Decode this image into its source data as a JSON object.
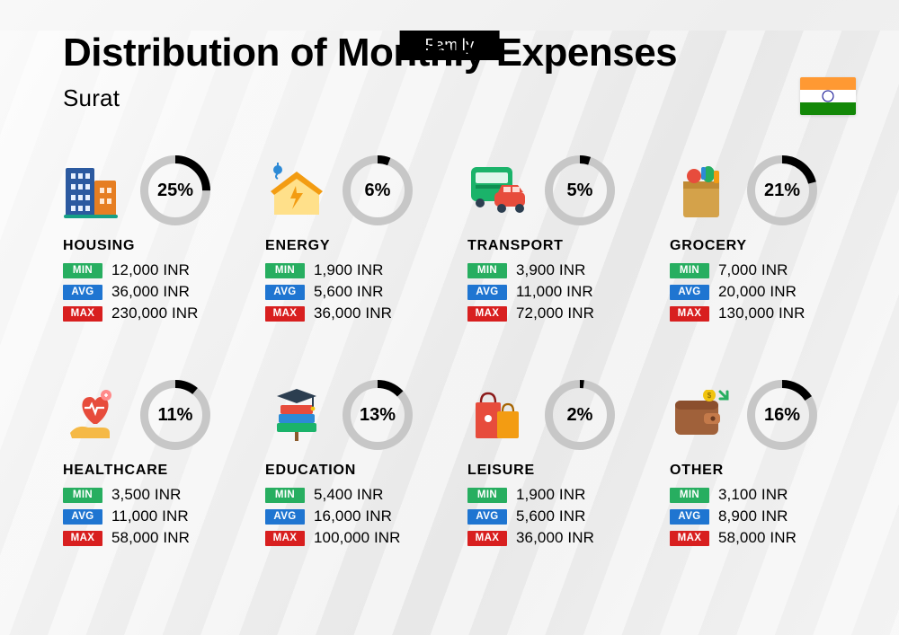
{
  "top_tag": "Family",
  "title": "Distribution of Monthly Expenses",
  "subtitle": "Surat",
  "flag": {
    "stripes": [
      "#ff9933",
      "#ffffff",
      "#138808"
    ],
    "chakra_color": "#00008b"
  },
  "currency_suffix": " INR",
  "donut": {
    "track_color": "#c7c7c7",
    "progress_color": "#000000",
    "stroke_width": 9,
    "size": 78,
    "label_fontsize": 20
  },
  "badges": {
    "min": {
      "label": "MIN",
      "bg": "#27ae60"
    },
    "avg": {
      "label": "AVG",
      "bg": "#1f75d1"
    },
    "max": {
      "label": "MAX",
      "bg": "#d81f1f"
    }
  },
  "categories": [
    {
      "key": "housing",
      "name": "HOUSING",
      "percent": 25,
      "min": "12,000",
      "avg": "36,000",
      "max": "230,000",
      "icon": "buildings",
      "icon_colors": {
        "primary": "#2c5aa0",
        "secondary": "#e67e22",
        "accent": "#16a085"
      }
    },
    {
      "key": "energy",
      "name": "ENERGY",
      "percent": 6,
      "min": "1,900",
      "avg": "5,600",
      "max": "36,000",
      "icon": "house-energy",
      "icon_colors": {
        "primary": "#f39c12",
        "secondary": "#ffe08a",
        "accent": "#2d8ad6"
      }
    },
    {
      "key": "transport",
      "name": "TRANSPORT",
      "percent": 5,
      "min": "3,900",
      "avg": "11,000",
      "max": "72,000",
      "icon": "bus-car",
      "icon_colors": {
        "primary": "#1bb36a",
        "secondary": "#e74c3c",
        "accent": "#2c3e50"
      }
    },
    {
      "key": "grocery",
      "name": "GROCERY",
      "percent": 21,
      "min": "7,000",
      "avg": "20,000",
      "max": "130,000",
      "icon": "grocery-bag",
      "icon_colors": {
        "primary": "#d4a24a",
        "secondary": "#e74c3c",
        "accent": "#27ae60"
      }
    },
    {
      "key": "healthcare",
      "name": "HEALTHCARE",
      "percent": 11,
      "min": "3,500",
      "avg": "11,000",
      "max": "58,000",
      "icon": "heart-hand",
      "icon_colors": {
        "primary": "#e74c3c",
        "secondary": "#f5b946",
        "accent": "#ffffff"
      }
    },
    {
      "key": "education",
      "name": "EDUCATION",
      "percent": 13,
      "min": "5,400",
      "avg": "16,000",
      "max": "100,000",
      "icon": "books-cap",
      "icon_colors": {
        "primary": "#2c3e50",
        "secondary": "#e74c3c",
        "accent": "#1bb36a"
      }
    },
    {
      "key": "leisure",
      "name": "LEISURE",
      "percent": 2,
      "min": "1,900",
      "avg": "5,600",
      "max": "36,000",
      "icon": "shopping-bags",
      "icon_colors": {
        "primary": "#e74c3c",
        "secondary": "#f39c12",
        "accent": "#2c3e50"
      }
    },
    {
      "key": "other",
      "name": "OTHER",
      "percent": 16,
      "min": "3,100",
      "avg": "8,900",
      "max": "58,000",
      "icon": "wallet",
      "icon_colors": {
        "primary": "#a0613a",
        "secondary": "#f1c40f",
        "accent": "#27ae60"
      }
    }
  ]
}
